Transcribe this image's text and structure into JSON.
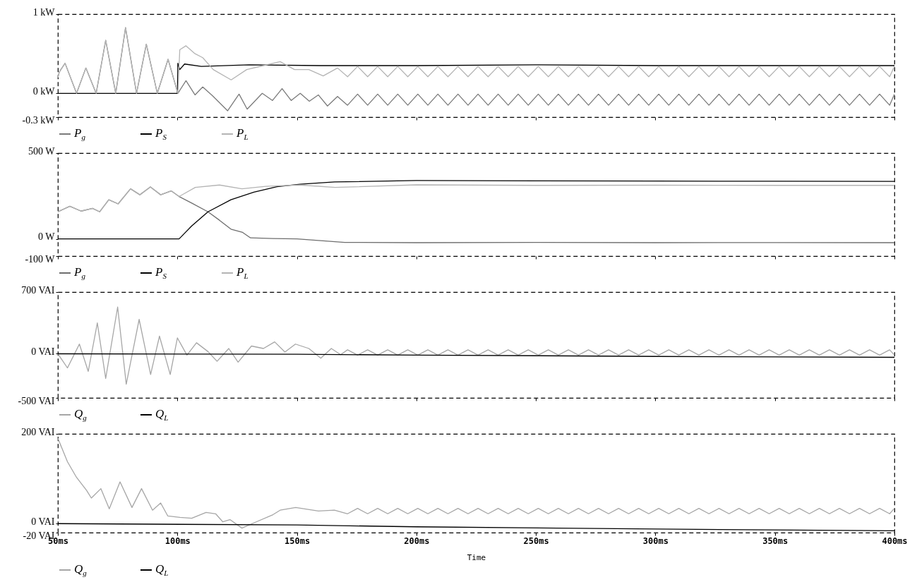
{
  "chart_data": [
    {
      "type": "line",
      "xlim": [
        50,
        400
      ],
      "xticks": [
        50,
        100,
        150,
        200,
        250,
        300,
        350,
        400
      ],
      "ylim": [
        -0.3,
        1
      ],
      "yticks": [
        {
          "value": -0.3,
          "label": "-0.3 kW"
        },
        {
          "value": 0,
          "label": "0 kW"
        },
        {
          "value": 1,
          "label": "1 kW"
        }
      ],
      "tick_labels": "y",
      "legend": "bottom",
      "series": [
        {
          "name": "P$_{g}$",
          "color": "#7a7a7a",
          "x": [
            50,
            50.6,
            53,
            57.8,
            61.7,
            66,
            70,
            74.2,
            78.3,
            82.9,
            87,
            91.6,
            96.1,
            100.2,
            103.6,
            107.4,
            110.6,
            114.7,
            121,
            125.8,
            129.2,
            135.5,
            139.8,
            143.8,
            147.6,
            151.4,
            155.2,
            159,
            162.8,
            167,
            171.2,
            175.4,
            179.6,
            183.8,
            188,
            192.2,
            196.4,
            200.6,
            204.8,
            209,
            213.2,
            217.4,
            221.6,
            225.8,
            230,
            234.2,
            238.4,
            242.6,
            246.8,
            251,
            255.2,
            259.4,
            263.6,
            267.8,
            272,
            276.2,
            280.4,
            284.6,
            288.8,
            293,
            297.2,
            301.4,
            305.6,
            309.8,
            314,
            318.2,
            322.4,
            326.6,
            330.8,
            335,
            339.2,
            343.4,
            347.6,
            351.8,
            356,
            360.2,
            364.4,
            368.6,
            372.8,
            377,
            381.2,
            385.4,
            389.6,
            393.8,
            398,
            400
          ],
          "values": [
            0.2,
            0.27,
            0.38,
            0,
            0.32,
            0,
            0.67,
            0,
            0.83,
            0,
            0.62,
            0,
            0.43,
            0,
            0.16,
            -0.02,
            0.08,
            -0.03,
            -0.22,
            -0.01,
            -0.2,
            0,
            -0.09,
            0.06,
            -0.09,
            0,
            -0.1,
            -0.02,
            -0.16,
            -0.04,
            -0.15,
            -0.01,
            -0.15,
            -0.01,
            -0.15,
            -0.01,
            -0.15,
            -0.01,
            -0.15,
            -0.01,
            -0.15,
            -0.01,
            -0.15,
            -0.01,
            -0.15,
            -0.01,
            -0.15,
            -0.01,
            -0.15,
            -0.01,
            -0.15,
            -0.01,
            -0.15,
            -0.01,
            -0.15,
            -0.01,
            -0.15,
            -0.01,
            -0.15,
            -0.01,
            -0.15,
            -0.01,
            -0.15,
            -0.01,
            -0.15,
            -0.01,
            -0.15,
            -0.01,
            -0.15,
            -0.01,
            -0.15,
            -0.01,
            -0.15,
            -0.01,
            -0.15,
            -0.01,
            -0.15,
            -0.01,
            -0.15,
            -0.01,
            -0.15,
            -0.01,
            -0.15,
            -0.01,
            -0.15,
            -0.01
          ]
        },
        {
          "name": "P$_{S}$",
          "color": "#000000",
          "x": [
            50,
            100,
            100.2,
            101,
            103,
            110,
            130,
            160,
            200,
            250,
            300,
            350,
            400
          ],
          "values": [
            0,
            0,
            0.38,
            0.3,
            0.37,
            0.34,
            0.36,
            0.35,
            0.35,
            0.36,
            0.35,
            0.35,
            0.35
          ]
        },
        {
          "name": "P$_{L}$",
          "color": "#b4b4b4",
          "x": [
            50,
            50.6,
            53,
            57.8,
            61.7,
            66,
            70,
            74.2,
            78.3,
            82.9,
            87,
            91.6,
            96.1,
            100.2,
            101,
            103.6,
            107.4,
            110.6,
            115,
            122.5,
            129,
            136,
            143,
            149,
            155,
            161,
            167,
            171.2,
            175.4,
            179.6,
            183.8,
            188,
            192.2,
            196.4,
            200.6,
            204.8,
            209,
            213.2,
            217.4,
            221.6,
            225.8,
            230,
            234.2,
            238.4,
            242.6,
            246.8,
            251,
            255.2,
            259.4,
            263.6,
            267.8,
            272,
            276.2,
            280.4,
            284.6,
            288.8,
            293,
            297.2,
            301.4,
            305.6,
            309.8,
            314,
            318.2,
            322.4,
            326.6,
            330.8,
            335,
            339.2,
            343.4,
            347.6,
            351.8,
            356,
            360.2,
            364.4,
            368.6,
            372.8,
            377,
            381.2,
            385.4,
            389.6,
            393.8,
            398,
            400
          ],
          "values": [
            0.2,
            0.27,
            0.38,
            0,
            0.32,
            0,
            0.67,
            0,
            0.83,
            0,
            0.62,
            0,
            0.43,
            0,
            0.55,
            0.6,
            0.5,
            0.45,
            0.3,
            0.17,
            0.3,
            0.35,
            0.4,
            0.3,
            0.3,
            0.22,
            0.32,
            0.21,
            0.34,
            0.21,
            0.34,
            0.21,
            0.34,
            0.21,
            0.34,
            0.21,
            0.34,
            0.21,
            0.34,
            0.21,
            0.34,
            0.21,
            0.34,
            0.21,
            0.34,
            0.21,
            0.34,
            0.21,
            0.34,
            0.21,
            0.34,
            0.21,
            0.34,
            0.21,
            0.34,
            0.21,
            0.34,
            0.21,
            0.34,
            0.21,
            0.34,
            0.21,
            0.34,
            0.21,
            0.34,
            0.21,
            0.34,
            0.21,
            0.34,
            0.21,
            0.34,
            0.21,
            0.34,
            0.21,
            0.34,
            0.21,
            0.34,
            0.21,
            0.34,
            0.21,
            0.34,
            0.21,
            0.34
          ]
        }
      ]
    },
    {
      "type": "line",
      "xlim": [
        50,
        400
      ],
      "xticks": [
        50,
        100,
        150,
        200,
        250,
        300,
        350,
        400
      ],
      "ylim": [
        -100,
        500
      ],
      "yticks": [
        {
          "value": -100,
          "label": "-100 W"
        },
        {
          "value": 0,
          "label": "0 W"
        },
        {
          "value": 500,
          "label": "500 W"
        }
      ],
      "tick_labels": "y",
      "legend": "bottom",
      "series": [
        {
          "name": "P$_{g}$",
          "color": "#6e6e6e",
          "x": [
            50,
            55,
            59.7,
            64.5,
            67.5,
            71.3,
            75.2,
            80.4,
            84.3,
            88.7,
            93,
            97.4,
            100.7,
            106,
            112.8,
            117.6,
            122.4,
            127.3,
            130.6,
            140,
            150,
            160,
            170,
            200,
            250,
            300,
            350,
            400
          ],
          "values": [
            158,
            190,
            162,
            178,
            158,
            228,
            204,
            292,
            257,
            303,
            257,
            280,
            247,
            209,
            158,
            109,
            57,
            38,
            6,
            2,
            0,
            -10,
            -20,
            -22,
            -20,
            -22,
            -21,
            -22
          ]
        },
        {
          "name": "P$_{S}$",
          "color": "#000000",
          "x": [
            50,
            100.7,
            106,
            112.8,
            122.4,
            132,
            141.7,
            151.3,
            165.8,
            200,
            250,
            300,
            350,
            400
          ],
          "values": [
            0,
            0,
            76,
            158,
            228,
            272,
            304,
            319,
            332,
            340,
            338,
            337,
            336,
            335
          ]
        },
        {
          "name": "P$_{L}$",
          "color": "#b4b4b4",
          "x": [
            50,
            55,
            59.7,
            64.5,
            67.5,
            71.3,
            75.2,
            80.4,
            84.3,
            88.7,
            93,
            97.4,
            100.7,
            107.5,
            117.6,
            127,
            137,
            151,
            166,
            200,
            250,
            300,
            350,
            400
          ],
          "values": [
            158,
            190,
            162,
            178,
            158,
            228,
            204,
            292,
            257,
            303,
            257,
            280,
            247,
            300,
            314,
            292,
            306,
            314,
            300,
            315,
            312,
            313,
            312,
            312
          ]
        }
      ]
    },
    {
      "type": "line",
      "xlim": [
        50,
        400
      ],
      "xticks": [
        50,
        100,
        150,
        200,
        250,
        300,
        350,
        400
      ],
      "ylim": [
        -500,
        700
      ],
      "yticks": [
        {
          "value": -500,
          "label": "-500 VAI"
        },
        {
          "value": 0,
          "label": "0 VAI"
        },
        {
          "value": 700,
          "label": "700 VAI"
        }
      ],
      "tick_labels": "y",
      "legend": "bottom",
      "series": [
        {
          "name": "Q$_{g}$",
          "color": "#a6a6a6",
          "x": [
            50,
            54,
            59,
            62.7,
            66.5,
            70,
            75,
            78.6,
            84,
            88.8,
            92.5,
            97,
            100,
            104,
            108,
            112.8,
            116.6,
            121.5,
            125.4,
            131,
            136,
            140.7,
            145,
            149.4,
            155,
            160,
            164.4,
            168.3,
            171.2,
            175.4,
            179.6,
            183.8,
            188,
            192.2,
            196.4,
            200.6,
            204.8,
            209,
            213.2,
            217.4,
            221.6,
            225.8,
            230,
            234.2,
            238.4,
            242.6,
            246.8,
            251,
            255.2,
            259.4,
            263.6,
            267.8,
            272,
            276.2,
            280.4,
            284.6,
            288.8,
            293,
            297.2,
            301.4,
            305.6,
            309.8,
            314,
            318.2,
            322.4,
            326.6,
            330.8,
            335,
            339.2,
            343.4,
            347.6,
            351.8,
            356,
            360.2,
            364.4,
            368.6,
            372.8,
            377,
            381.2,
            385.4,
            389.6,
            393.8,
            398,
            400
          ],
          "values": [
            0,
            -160,
            110,
            -200,
            350,
            -280,
            530,
            -345,
            390,
            -235,
            200,
            -235,
            180,
            -15,
            125,
            25,
            -85,
            60,
            -95,
            88,
            60,
            135,
            20,
            110,
            60,
            -50,
            60,
            -10,
            45,
            -15,
            45,
            -15,
            45,
            -15,
            45,
            -15,
            45,
            -15,
            45,
            -15,
            45,
            -15,
            45,
            -15,
            45,
            -15,
            45,
            -15,
            45,
            -15,
            45,
            -15,
            45,
            -15,
            45,
            -15,
            45,
            -15,
            45,
            -15,
            45,
            -15,
            45,
            -15,
            45,
            -15,
            45,
            -15,
            45,
            -15,
            45,
            -15,
            45,
            -15,
            45,
            -15,
            45,
            -15,
            45,
            -15,
            45,
            -15,
            45,
            -15
          ]
        },
        {
          "name": "Q$_{L}$",
          "color": "#000000",
          "x": [
            50,
            150,
            200,
            250,
            300,
            350,
            400
          ],
          "values": [
            0,
            -5,
            -15,
            -22,
            -30,
            -35,
            -40
          ]
        }
      ]
    },
    {
      "type": "line",
      "xlim": [
        50,
        400
      ],
      "xticks": [
        {
          "value": 50,
          "label": "50ms"
        },
        {
          "value": 100,
          "label": "100ms"
        },
        {
          "value": 150,
          "label": "150ms"
        },
        {
          "value": 200,
          "label": "200ms"
        },
        {
          "value": 250,
          "label": "250ms"
        },
        {
          "value": 300,
          "label": "300ms"
        },
        {
          "value": 350,
          "label": "350ms"
        },
        {
          "value": 400,
          "label": "400ms"
        }
      ],
      "ylim": [
        -20,
        200
      ],
      "yticks": [
        {
          "value": -20,
          "label": "-20 VAI"
        },
        {
          "value": 0,
          "label": "0 VAI"
        },
        {
          "value": 200,
          "label": "200 VAI"
        }
      ],
      "xlabel": "Time",
      "legend": "bottom",
      "series": [
        {
          "name": "Q$_{g}$",
          "color": "#a6a6a6",
          "x": [
            50,
            54,
            57.8,
            62,
            64,
            68,
            71.5,
            76,
            81,
            85,
            89.6,
            93,
            96,
            101,
            106,
            112,
            116,
            119,
            122,
            127,
            133,
            140,
            143,
            149.5,
            159,
            165.7,
            171.2,
            175.4,
            179.6,
            183.8,
            188,
            192.2,
            196.4,
            200.6,
            204.8,
            209,
            213.2,
            217.4,
            221.6,
            225.8,
            230,
            234.2,
            238.4,
            242.6,
            246.8,
            251,
            255.2,
            259.4,
            263.6,
            267.8,
            272,
            276.2,
            280.4,
            284.6,
            288.8,
            293,
            297.2,
            301.4,
            305.6,
            309.8,
            314,
            318.2,
            322.4,
            326.6,
            330.8,
            335,
            339.2,
            343.4,
            347.6,
            351.8,
            356,
            360.2,
            364.4,
            368.6,
            372.8,
            377,
            381.2,
            385.4,
            389.6,
            393.8,
            398,
            400
          ],
          "values": [
            190,
            138,
            103,
            74,
            57,
            78,
            33,
            93,
            36,
            78,
            30,
            46,
            17,
            14,
            12,
            25,
            22,
            4,
            9,
            -10,
            4,
            20,
            30,
            36,
            28,
            30,
            22,
            34,
            22,
            34,
            22,
            34,
            22,
            34,
            22,
            34,
            22,
            34,
            22,
            34,
            22,
            34,
            22,
            34,
            22,
            34,
            22,
            34,
            22,
            34,
            22,
            34,
            22,
            34,
            22,
            34,
            22,
            34,
            22,
            34,
            22,
            34,
            22,
            34,
            22,
            34,
            22,
            34,
            22,
            34,
            22,
            34,
            22,
            34,
            22,
            34,
            22,
            34,
            22,
            34,
            22,
            34
          ]
        },
        {
          "name": "Q$_{L}$",
          "color": "#000000",
          "x": [
            50,
            150,
            200,
            300,
            400
          ],
          "values": [
            0,
            -3,
            -7,
            -12,
            -16
          ]
        }
      ]
    }
  ]
}
